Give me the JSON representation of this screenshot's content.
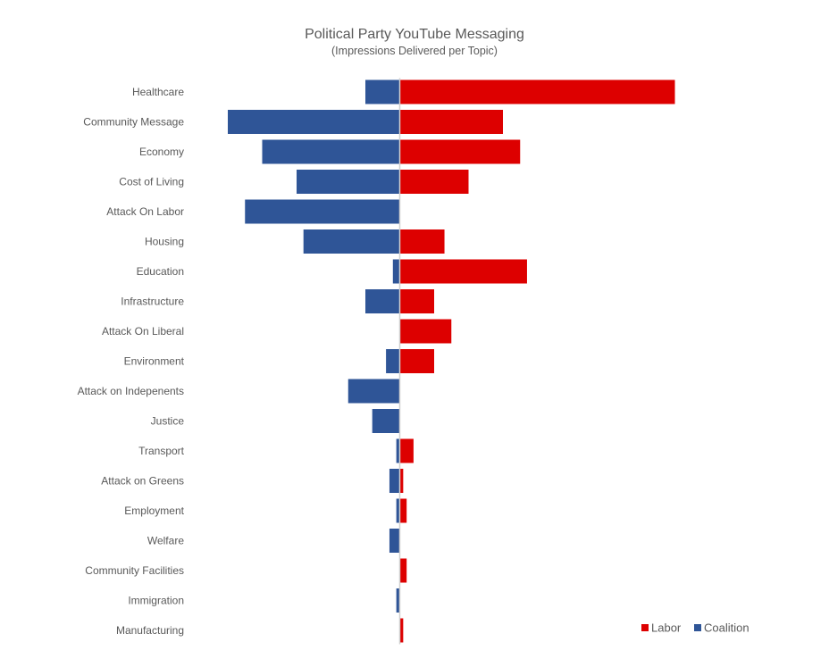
{
  "chart_data": {
    "type": "bar",
    "orientation": "horizontal-diverging",
    "title": "Political Party YouTube Messaging",
    "subtitle": "(Impressions Delivered per Topic)",
    "categories": [
      "Healthcare",
      "Community Message",
      "Economy",
      "Cost of Living",
      "Attack On Labor",
      "Housing",
      "Education",
      "Infrastructure",
      "Attack On Liberal",
      "Environment",
      "Attack on Indepenents",
      "Justice",
      "Transport",
      "Attack on Greens",
      "Employment",
      "Welfare",
      "Community Facilities",
      "Immigration",
      "Manufacturing"
    ],
    "series": [
      {
        "name": "Labor",
        "color": "#dd0000",
        "direction": "right",
        "values": [
          8,
          3,
          3.5,
          2,
          0,
          1.3,
          3.7,
          1,
          1.5,
          1,
          0,
          0,
          0.4,
          0.1,
          0.2,
          0,
          0.2,
          0,
          0.1
        ]
      },
      {
        "name": "Coalition",
        "color": "#2f5597",
        "direction": "left",
        "values": [
          1,
          5,
          4,
          3,
          4.5,
          2.8,
          0.2,
          1,
          0,
          0.4,
          1.5,
          0.8,
          0.1,
          0.3,
          0.1,
          0.3,
          0,
          0.1,
          0
        ]
      }
    ],
    "legend_position": "bottom-right",
    "grid": false,
    "axis_labels_visible": false
  }
}
